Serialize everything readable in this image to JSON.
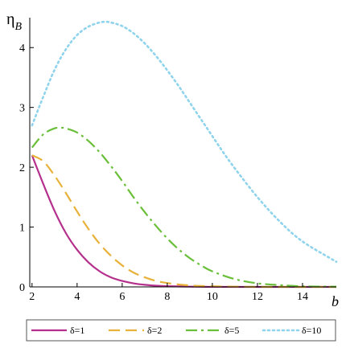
{
  "chart_data": {
    "type": "line",
    "xlabel": "b",
    "ylabel": "η",
    "ylabel_sub": "B",
    "xlim": [
      1.9,
      15.5
    ],
    "ylim": [
      0,
      4.5
    ],
    "x_ticks": [
      2,
      4,
      6,
      8,
      10,
      12,
      14
    ],
    "y_ticks": [
      0,
      1,
      2,
      3,
      4
    ],
    "grid": false,
    "legend_position": "bottom",
    "series": [
      {
        "name": "δ=1",
        "color": "#b5308c",
        "dash": "solid",
        "x": [
          2,
          2.5,
          3,
          3.5,
          4,
          4.5,
          5,
          5.5,
          6,
          6.5,
          7,
          7.5,
          8,
          9,
          10,
          11,
          12,
          13,
          14,
          15.5
        ],
        "y": [
          2.2,
          1.72,
          1.27,
          0.9,
          0.62,
          0.41,
          0.26,
          0.16,
          0.1,
          0.06,
          0.035,
          0.02,
          0.012,
          0.004,
          0.001,
          0,
          0,
          0,
          0,
          0
        ]
      },
      {
        "name": "δ=2",
        "color": "#e8b23a",
        "dash": "dashed",
        "x": [
          2,
          2.5,
          3,
          3.5,
          4,
          4.5,
          5,
          5.5,
          6,
          6.5,
          7,
          7.5,
          8,
          8.5,
          9,
          9.5,
          10,
          11,
          12,
          13,
          14,
          15.5
        ],
        "y": [
          2.2,
          2.1,
          1.86,
          1.57,
          1.26,
          0.97,
          0.72,
          0.52,
          0.36,
          0.24,
          0.16,
          0.1,
          0.065,
          0.04,
          0.025,
          0.015,
          0.01,
          0.004,
          0.001,
          0,
          0,
          0
        ]
      },
      {
        "name": "δ=5",
        "color": "#6abf3a",
        "dash": "dashdot",
        "x": [
          2,
          2.5,
          3,
          3.3,
          3.5,
          4,
          4.5,
          5,
          5.5,
          6,
          6.5,
          7,
          7.5,
          8,
          8.5,
          9,
          9.5,
          10,
          11,
          12,
          13,
          14,
          15.5
        ],
        "y": [
          2.33,
          2.55,
          2.65,
          2.66,
          2.65,
          2.58,
          2.44,
          2.25,
          2.02,
          1.77,
          1.5,
          1.25,
          1.02,
          0.81,
          0.63,
          0.48,
          0.36,
          0.26,
          0.13,
          0.06,
          0.03,
          0.01,
          0.003
        ]
      },
      {
        "name": "δ=10",
        "color": "#8fd3ec",
        "dash": "dotted",
        "x": [
          2,
          2.5,
          3,
          3.5,
          4,
          4.5,
          5,
          5.3,
          5.5,
          6,
          6.5,
          7,
          7.5,
          8,
          8.5,
          9,
          9.5,
          10,
          10.5,
          11,
          12,
          13,
          14,
          15.5
        ],
        "y": [
          2.7,
          3.18,
          3.63,
          3.97,
          4.21,
          4.35,
          4.42,
          4.43,
          4.42,
          4.36,
          4.24,
          4.07,
          3.86,
          3.62,
          3.36,
          3.08,
          2.8,
          2.52,
          2.24,
          1.98,
          1.5,
          1.09,
          0.76,
          0.42
        ]
      }
    ]
  }
}
